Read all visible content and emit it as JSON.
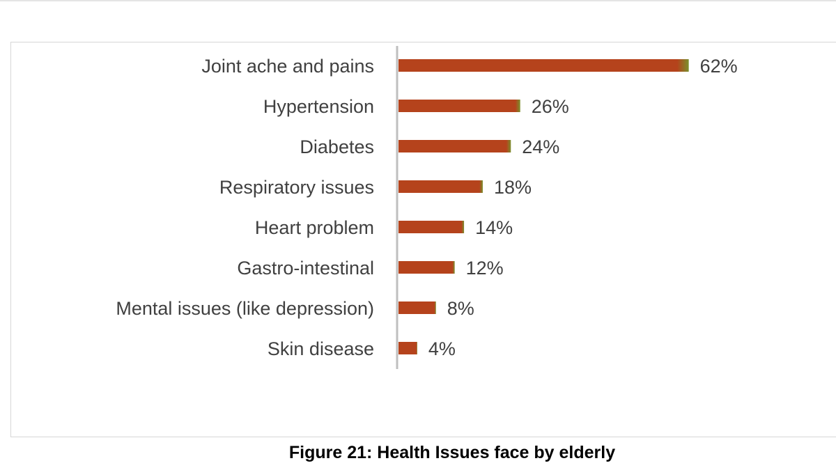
{
  "figure": {
    "caption": "Figure 21: Health Issues face by elderly"
  },
  "chart_data": {
    "type": "bar",
    "orientation": "horizontal",
    "categories": [
      "Joint ache and pains",
      "Hypertension",
      "Diabetes",
      "Respiratory issues",
      "Heart problem",
      "Gastro-intestinal",
      "Mental issues (like depression)",
      "Skin disease"
    ],
    "values": [
      62,
      26,
      24,
      18,
      14,
      12,
      8,
      4
    ],
    "value_labels": [
      "62%",
      "26%",
      "24%",
      "18%",
      "14%",
      "12%",
      "8%",
      "4%"
    ],
    "unit": "%",
    "xlim": [
      0,
      62
    ],
    "grid": false,
    "legend": "none",
    "colors": {
      "bar": "#b5431c",
      "bar_edge": "#7a8f2c",
      "axis": "#bfbfbf",
      "label": "#404040"
    }
  }
}
